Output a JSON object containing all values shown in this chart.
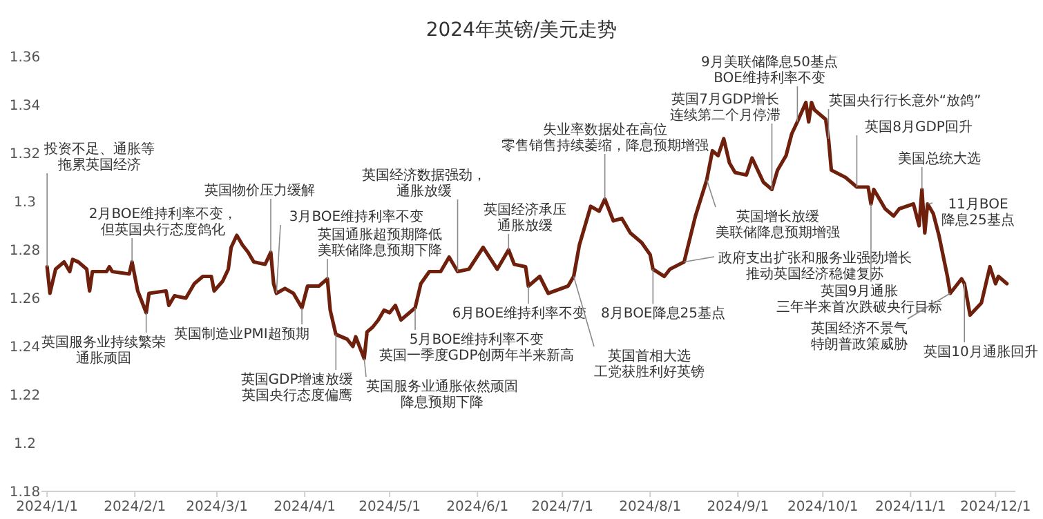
{
  "chart_data": {
    "type": "line",
    "title": "2024年英镑/美元走势",
    "xlim": [
      "2023-12-30",
      "2024-12-08"
    ],
    "xticks": [
      {
        "value": "2024-01-01",
        "label": "2024/1/1"
      },
      {
        "value": "2024-02-01",
        "label": "2024/2/1"
      },
      {
        "value": "2024-03-01",
        "label": "2024/3/1"
      },
      {
        "value": "2024-04-01",
        "label": "2024/4/1"
      },
      {
        "value": "2024-05-01",
        "label": "2024/5/1"
      },
      {
        "value": "2024-06-01",
        "label": "2024/6/1"
      },
      {
        "value": "2024-07-01",
        "label": "2024/7/1"
      },
      {
        "value": "2024-08-01",
        "label": "2024/8/1"
      },
      {
        "value": "2024-09-01",
        "label": "2024/9/1"
      },
      {
        "value": "2024-10-01",
        "label": "2024/10/1"
      },
      {
        "value": "2024-11-01",
        "label": "2024/11/1"
      },
      {
        "value": "2024-12-01",
        "label": "2024/12/1"
      }
    ],
    "ylim": [
      1.18,
      1.36
    ],
    "yticks": [
      1.18,
      1.2,
      1.22,
      1.24,
      1.26,
      1.28,
      1.3,
      1.32,
      1.34,
      1.36
    ],
    "grid": false,
    "marker": "none",
    "line_style": "solid",
    "series": [
      {
        "color": "#6e200c",
        "x": [
          "2024-01-01",
          "2024-01-02",
          "2024-01-04",
          "2024-01-07",
          "2024-01-09",
          "2024-01-10",
          "2024-01-12",
          "2024-01-15",
          "2024-01-16",
          "2024-01-17",
          "2024-01-22",
          "2024-01-23",
          "2024-01-24",
          "2024-01-30",
          "2024-01-31",
          "2024-02-02",
          "2024-02-05",
          "2024-02-06",
          "2024-02-12",
          "2024-02-13",
          "2024-02-15",
          "2024-02-19",
          "2024-02-22",
          "2024-02-25",
          "2024-02-28",
          "2024-02-29",
          "2024-03-03",
          "2024-03-05",
          "2024-03-06",
          "2024-03-08",
          "2024-03-10",
          "2024-03-12",
          "2024-03-14",
          "2024-03-18",
          "2024-03-20",
          "2024-03-21",
          "2024-03-22",
          "2024-03-25",
          "2024-03-28",
          "2024-03-31",
          "2024-04-02",
          "2024-04-06",
          "2024-04-09",
          "2024-04-10",
          "2024-04-12",
          "2024-04-16",
          "2024-04-18",
          "2024-04-19",
          "2024-04-22",
          "2024-04-23",
          "2024-04-25",
          "2024-04-27",
          "2024-04-29",
          "2024-05-01",
          "2024-05-03",
          "2024-05-05",
          "2024-05-07",
          "2024-05-10",
          "2024-05-12",
          "2024-05-15",
          "2024-05-19",
          "2024-05-22",
          "2024-05-25",
          "2024-05-29",
          "2024-06-03",
          "2024-06-08",
          "2024-06-11",
          "2024-06-12",
          "2024-06-14",
          "2024-06-18",
          "2024-06-19",
          "2024-06-23",
          "2024-06-26",
          "2024-07-03",
          "2024-07-05",
          "2024-07-07",
          "2024-07-11",
          "2024-07-14",
          "2024-07-16",
          "2024-07-19",
          "2024-07-22",
          "2024-07-25",
          "2024-07-29",
          "2024-08-01",
          "2024-08-02",
          "2024-08-06",
          "2024-08-08",
          "2024-08-13",
          "2024-08-17",
          "2024-08-21",
          "2024-08-23",
          "2024-08-25",
          "2024-08-27",
          "2024-08-29",
          "2024-08-31",
          "2024-09-04",
          "2024-09-06",
          "2024-09-10",
          "2024-09-13",
          "2024-09-15",
          "2024-09-18",
          "2024-09-20",
          "2024-09-22",
          "2024-09-25",
          "2024-09-26",
          "2024-09-27",
          "2024-09-28",
          "2024-10-02",
          "2024-10-03",
          "2024-10-04",
          "2024-10-09",
          "2024-10-13",
          "2024-10-17",
          "2024-10-18",
          "2024-10-19",
          "2024-10-23",
          "2024-10-26",
          "2024-10-28",
          "2024-11-02",
          "2024-11-04",
          "2024-11-05",
          "2024-11-06",
          "2024-11-07",
          "2024-11-09",
          "2024-11-11",
          "2024-11-14",
          "2024-11-15",
          "2024-11-19",
          "2024-11-20",
          "2024-11-22",
          "2024-11-26",
          "2024-11-28",
          "2024-11-29",
          "2024-12-01",
          "2024-12-02",
          "2024-12-05"
        ],
        "values": [
          1.273,
          1.262,
          1.272,
          1.275,
          1.271,
          1.276,
          1.275,
          1.272,
          1.263,
          1.271,
          1.271,
          1.273,
          1.271,
          1.27,
          1.275,
          1.263,
          1.254,
          1.262,
          1.263,
          1.257,
          1.261,
          1.26,
          1.266,
          1.269,
          1.269,
          1.263,
          1.267,
          1.272,
          1.281,
          1.286,
          1.282,
          1.279,
          1.275,
          1.274,
          1.279,
          1.266,
          1.262,
          1.264,
          1.262,
          1.256,
          1.265,
          1.265,
          1.268,
          1.255,
          1.245,
          1.243,
          1.24,
          1.244,
          1.235,
          1.246,
          1.248,
          1.251,
          1.255,
          1.254,
          1.257,
          1.251,
          1.253,
          1.256,
          1.266,
          1.271,
          1.271,
          1.277,
          1.271,
          1.272,
          1.281,
          1.272,
          1.278,
          1.28,
          1.274,
          1.273,
          1.265,
          1.269,
          1.262,
          1.265,
          1.269,
          1.282,
          1.298,
          1.296,
          1.301,
          1.292,
          1.293,
          1.287,
          1.283,
          1.278,
          1.272,
          1.269,
          1.272,
          1.275,
          1.294,
          1.309,
          1.321,
          1.319,
          1.326,
          1.316,
          1.312,
          1.311,
          1.318,
          1.308,
          1.305,
          1.313,
          1.319,
          1.328,
          1.333,
          1.341,
          1.333,
          1.341,
          1.338,
          1.334,
          1.326,
          1.313,
          1.31,
          1.306,
          1.306,
          1.299,
          1.305,
          1.297,
          1.294,
          1.297,
          1.299,
          1.29,
          1.305,
          1.287,
          1.299,
          1.295,
          1.286,
          1.269,
          1.262,
          1.268,
          1.266,
          1.253,
          1.258,
          1.268,
          1.273,
          1.266,
          1.269,
          1.266
        ]
      }
    ],
    "annotations": [
      {
        "text": "投资不足、通胀等拖累英国经济",
        "x": "2024-01-01",
        "y": 1.273
      },
      {
        "text": "2月BOE维持利率不变，但英国央行态度鸽化",
        "x": "2024-01-31",
        "y": 1.275
      },
      {
        "text": "英国物价压力缓解",
        "x": "2024-03-20",
        "y": 1.279
      },
      {
        "text": "3月BOE维持利率不变",
        "x": "2024-03-22",
        "y": 1.262
      },
      {
        "text": "英国通胀超预期降低美联储降息预期下降",
        "x": "2024-04-09",
        "y": 1.268
      },
      {
        "text": "英国服务业持续繁荣通胀顽固",
        "x": "2024-02-05",
        "y": 1.254
      },
      {
        "text": "英国制造业PMI超预期",
        "x": "2024-03-31",
        "y": 1.256
      },
      {
        "text": "英国GDP增速放缓英国央行态度偏鹰",
        "x": "2024-04-12",
        "y": 1.245
      },
      {
        "text": "英国服务业通胀依然顽固降息预期下降",
        "x": "2024-04-22",
        "y": 1.235
      },
      {
        "text": "5月BOE维持利率不变英国一季度GDP创两年半来新高",
        "x": "2024-05-10",
        "y": 1.256
      },
      {
        "text": "英国经济数据强劲，通胀放缓",
        "x": "2024-05-25",
        "y": 1.271
      },
      {
        "text": "英国经济承压通胀放缓",
        "x": "2024-06-12",
        "y": 1.28
      },
      {
        "text": "6月BOE维持利率不变",
        "x": "2024-06-19",
        "y": 1.265
      },
      {
        "text": "失业率数据处在高位零售销售持续萎缩，降息预期增强",
        "x": "2024-07-16",
        "y": 1.301
      },
      {
        "text": "英国首相大选工党获胜利好英镑",
        "x": "2024-07-05",
        "y": 1.269
      },
      {
        "text": "8月BOE降息25基点",
        "x": "2024-08-02",
        "y": 1.272
      },
      {
        "text": "英国7月GDP增长连续第二个月停滞",
        "x": "2024-09-13",
        "y": 1.305
      },
      {
        "text": "9月美联储降息50基点BOE维持利率不变",
        "x": "2024-09-22",
        "y": 1.333
      },
      {
        "text": "英国央行行长意外“放鸽”",
        "x": "2024-10-03",
        "y": 1.326
      },
      {
        "text": "英国8月GDP回升",
        "x": "2024-10-13",
        "y": 1.306
      },
      {
        "text": "美国总统大选",
        "x": "2024-11-05",
        "y": 1.305
      },
      {
        "text": "11月BOE降息25基点",
        "x": "2024-11-07",
        "y": 1.299
      },
      {
        "text": "英国增长放缓美联储降息预期增强",
        "x": "2024-08-21",
        "y": 1.309
      },
      {
        "text": "政府支出扩张和服务业强劲增长推动英国经济稳健复苏",
        "x": "2024-08-13",
        "y": 1.275
      },
      {
        "text": "英国9月通胀三年半来首次跌破央行目标",
        "x": "2024-10-18",
        "y": 1.299
      },
      {
        "text": "英国经济不景气特朗普政策威胁",
        "x": "2024-11-15",
        "y": 1.262
      },
      {
        "text": "英国10月通胀回升",
        "x": "2024-11-20",
        "y": 1.266
      }
    ]
  }
}
